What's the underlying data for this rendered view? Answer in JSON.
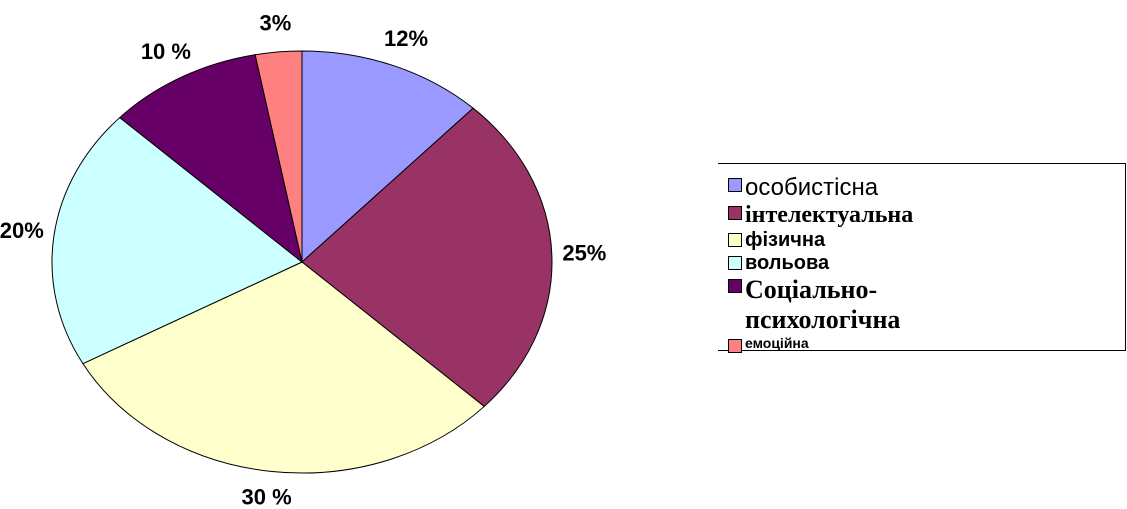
{
  "chart_data": {
    "type": "pie",
    "categories": [
      "особистісна",
      "інтелектуальна",
      "фізична",
      "вольова",
      "Соціально-психологічна",
      "емоційна"
    ],
    "values": [
      12,
      25,
      30,
      20,
      10,
      3
    ],
    "value_labels": [
      "12%",
      "25%",
      "30 %",
      "20%",
      "10 %",
      "3%"
    ],
    "colors": [
      "#9999ff",
      "#993366",
      "#ffffcc",
      "#ccffff",
      "#660066",
      "#ff8080"
    ],
    "legend": "right"
  }
}
